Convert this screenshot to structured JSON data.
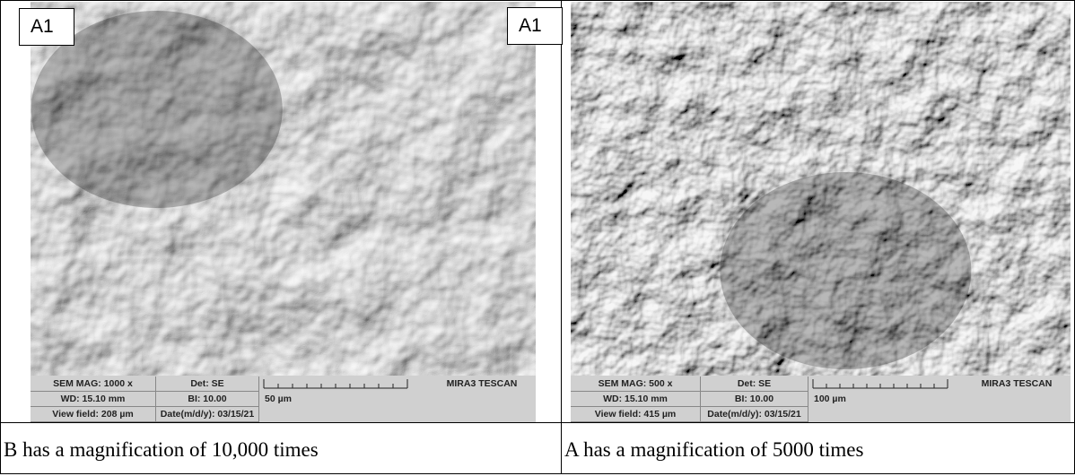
{
  "panels": [
    {
      "label": "A1",
      "info": {
        "sem_mag": "SEM MAG: 1000 x",
        "det": "Det: SE",
        "brand": "MIRA3 TESCAN",
        "wd": "WD: 15.10 mm",
        "bi": "BI: 10.00",
        "scale": "50 µm",
        "view_field": "View field: 208 µm",
        "date": "Date(m/d/y): 03/15/21"
      },
      "caption": "B has a magnification of 10,000 times"
    },
    {
      "label": "A1",
      "info": {
        "sem_mag": "SEM MAG: 500 x",
        "det": "Det: SE",
        "brand": "MIRA3 TESCAN",
        "wd": "WD: 15.10 mm",
        "bi": "BI: 10.00",
        "scale": "100 µm",
        "view_field": "View field: 415 µm",
        "date": "Date(m/d/y): 03/15/21"
      },
      "caption": "A has a magnification of 5000 times"
    }
  ]
}
